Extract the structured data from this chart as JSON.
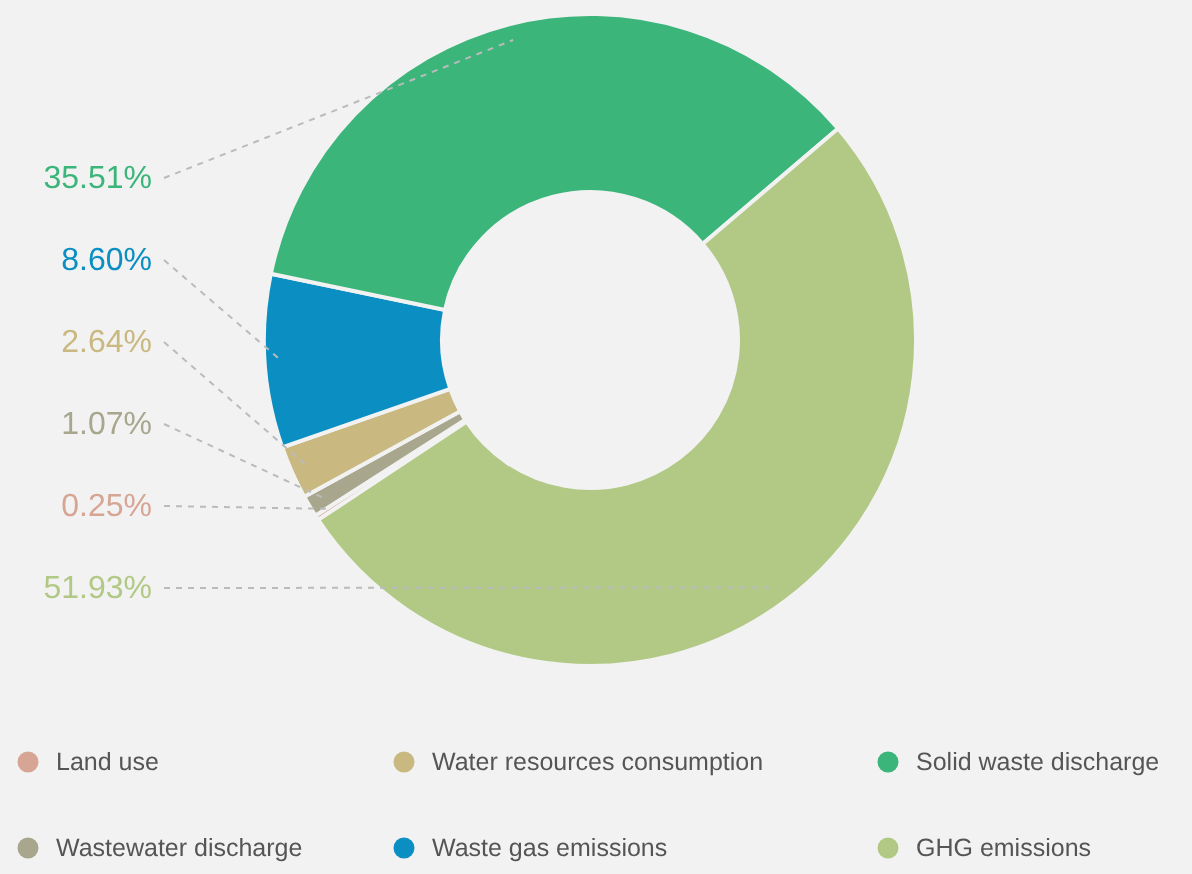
{
  "chart_data": {
    "type": "donut",
    "categories": [
      "Land use",
      "Wastewater discharge",
      "Water resources consumption",
      "Waste gas emissions",
      "Solid waste discharge",
      "GHG emissions"
    ],
    "values": [
      0.25,
      1.07,
      2.64,
      8.6,
      35.51,
      51.93
    ],
    "value_labels": [
      "0.25%",
      "1.07%",
      "2.64%",
      "8.60%",
      "35.51%",
      "51.93%"
    ],
    "colors": [
      "#d6a594",
      "#a8a78e",
      "#c9b87f",
      "#0b8ec1",
      "#3bb57a",
      "#b1c985"
    ],
    "legend": "bottom"
  }
}
